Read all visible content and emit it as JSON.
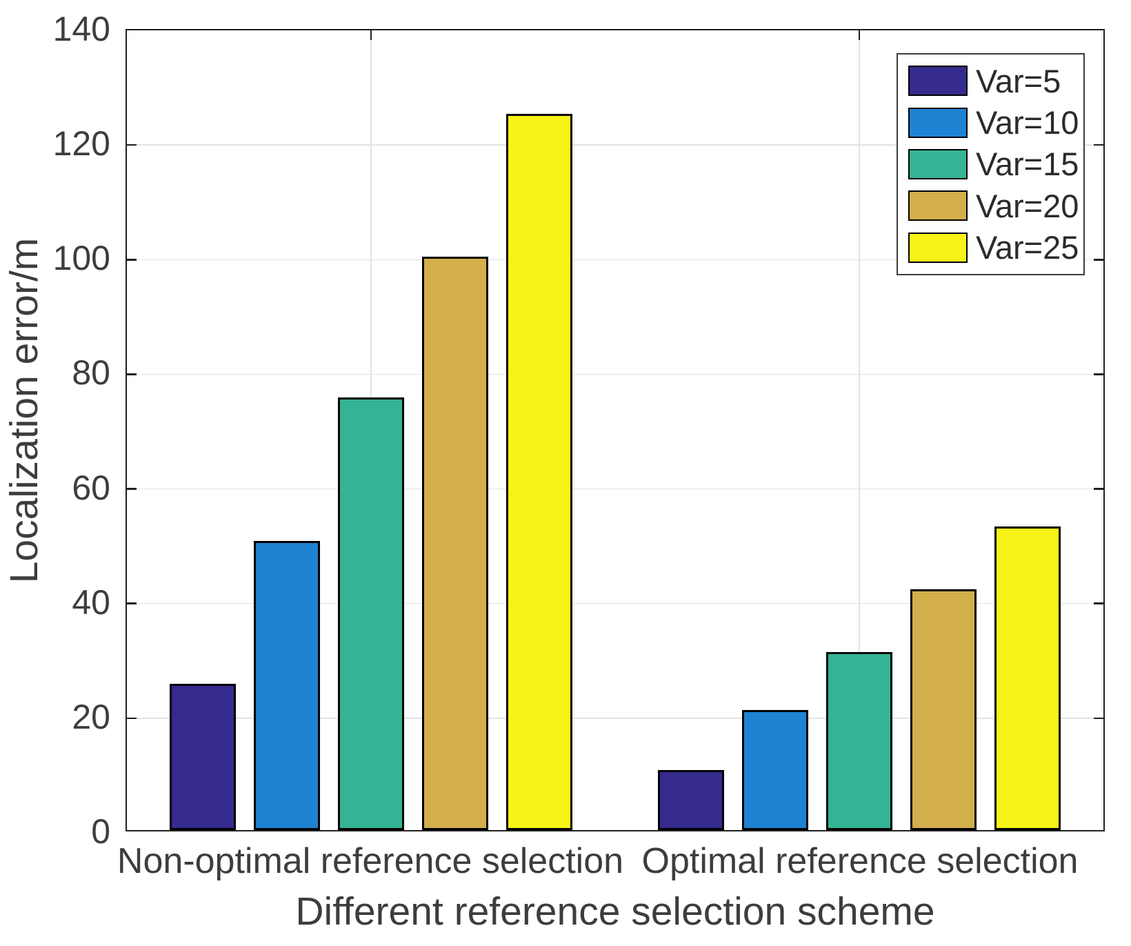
{
  "figure": {
    "background": "#ffffff",
    "axis_color": "#1f1f1f",
    "grid_color": "#e2e2e2",
    "text_color": "#3d3d3d"
  },
  "chart_data": {
    "type": "bar",
    "title": "",
    "xlabel": "Different reference selection scheme",
    "ylabel": "Localization error/m",
    "categories": [
      "Non-optimal reference selection",
      "Optimal reference selection"
    ],
    "series": [
      {
        "name": "Var=5",
        "color": "#352A8E",
        "values": [
          25.5,
          10.5
        ]
      },
      {
        "name": "Var=10",
        "color": "#1E82D2",
        "values": [
          50.5,
          21
        ]
      },
      {
        "name": "Var=15",
        "color": "#34B495",
        "values": [
          75.5,
          31
        ]
      },
      {
        "name": "Var=20",
        "color": "#D2AF4B",
        "values": [
          100,
          42
        ]
      },
      {
        "name": "Var=25",
        "color": "#F7F319",
        "values": [
          125,
          53
        ]
      }
    ],
    "ylim": [
      0,
      140
    ],
    "yticks": [
      0,
      20,
      40,
      60,
      80,
      100,
      120,
      140
    ],
    "grid": "on",
    "legend_position": "top-right",
    "group_centers_pct": [
      25,
      75
    ]
  }
}
